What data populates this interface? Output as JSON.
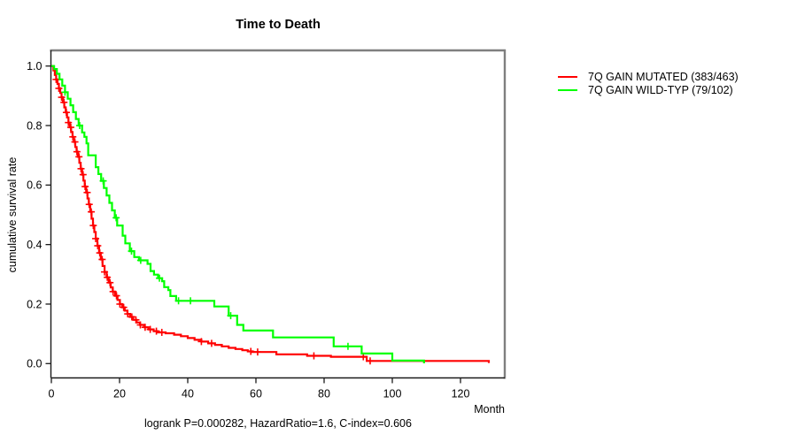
{
  "title": "Time to Death",
  "footer_stats": "logrank P=0.000282, HazardRatio=1.6, C-index=0.606",
  "chart_data": {
    "type": "line",
    "subtype": "kaplan-meier-step",
    "title": "Time to Death",
    "xlabel": "Month",
    "ylabel": "cumulative survival rate",
    "xlim": [
      0,
      133
    ],
    "ylim": [
      0,
      1
    ],
    "xticks": [
      0,
      20,
      40,
      60,
      80,
      100,
      120
    ],
    "yticks": [
      0.0,
      0.2,
      0.4,
      0.6,
      0.8,
      1.0
    ],
    "grid": false,
    "legend_position": "right-outside",
    "annotation": "logrank P=0.000282, HazardRatio=1.6, C-index=0.606",
    "series": [
      {
        "name": "7Q GAIN MUTATED (383/463)",
        "color": "#ff0000",
        "points": [
          [
            0,
            1.0
          ],
          [
            0.6,
            0.985
          ],
          [
            1.0,
            0.97
          ],
          [
            1.4,
            0.955
          ],
          [
            1.8,
            0.94
          ],
          [
            2.2,
            0.925
          ],
          [
            2.6,
            0.91
          ],
          [
            3.0,
            0.895
          ],
          [
            3.4,
            0.878
          ],
          [
            3.8,
            0.861
          ],
          [
            4.2,
            0.844
          ],
          [
            4.6,
            0.827
          ],
          [
            5.0,
            0.81
          ],
          [
            5.4,
            0.794
          ],
          [
            5.8,
            0.778
          ],
          [
            6.2,
            0.762
          ],
          [
            6.6,
            0.745
          ],
          [
            7.0,
            0.728
          ],
          [
            7.4,
            0.712
          ],
          [
            7.8,
            0.695
          ],
          [
            8.2,
            0.675
          ],
          [
            8.6,
            0.655
          ],
          [
            9.0,
            0.635
          ],
          [
            9.4,
            0.615
          ],
          [
            9.8,
            0.595
          ],
          [
            10.2,
            0.575
          ],
          [
            10.6,
            0.555
          ],
          [
            11.0,
            0.535
          ],
          [
            11.4,
            0.51
          ],
          [
            11.8,
            0.487
          ],
          [
            12.2,
            0.464
          ],
          [
            12.6,
            0.442
          ],
          [
            13.0,
            0.42
          ],
          [
            13.5,
            0.396
          ],
          [
            14.0,
            0.372
          ],
          [
            14.5,
            0.35
          ],
          [
            15.0,
            0.328
          ],
          [
            15.6,
            0.308
          ],
          [
            16.2,
            0.29
          ],
          [
            16.8,
            0.272
          ],
          [
            17.4,
            0.256
          ],
          [
            18.0,
            0.242
          ],
          [
            18.7,
            0.228
          ],
          [
            19.4,
            0.214
          ],
          [
            20.1,
            0.2
          ],
          [
            20.8,
            0.189
          ],
          [
            21.5,
            0.178
          ],
          [
            22.3,
            0.167
          ],
          [
            23.1,
            0.157
          ],
          [
            24.0,
            0.147
          ],
          [
            25.0,
            0.138
          ],
          [
            26.0,
            0.13
          ],
          [
            27.2,
            0.122
          ],
          [
            28.5,
            0.115
          ],
          [
            30.0,
            0.109
          ],
          [
            31.2,
            0.105
          ],
          [
            33.5,
            0.102
          ],
          [
            36.0,
            0.097
          ],
          [
            38.0,
            0.092
          ],
          [
            40.0,
            0.086
          ],
          [
            42.0,
            0.08
          ],
          [
            44.0,
            0.074
          ],
          [
            46.0,
            0.068
          ],
          [
            48.0,
            0.063
          ],
          [
            50.0,
            0.058
          ],
          [
            52.0,
            0.053
          ],
          [
            54.0,
            0.049
          ],
          [
            56.0,
            0.045
          ],
          [
            57.6,
            0.041
          ],
          [
            59.0,
            0.039
          ],
          [
            66.0,
            0.031
          ],
          [
            75.0,
            0.026
          ],
          [
            82.0,
            0.023
          ],
          [
            92.5,
            0.009
          ],
          [
            128.0,
            0.009
          ],
          [
            128.3,
            0.002
          ]
        ],
        "censor_months": [
          1.4,
          2.2,
          3.0,
          3.7,
          4.4,
          5.0,
          5.7,
          6.3,
          6.9,
          7.5,
          8.1,
          8.7,
          9.3,
          9.9,
          10.5,
          11.1,
          11.7,
          12.3,
          13.0,
          13.6,
          14.2,
          14.9,
          15.6,
          16.4,
          17.2,
          18.1,
          19.1,
          20.1,
          21.2,
          22.4,
          23.6,
          24.8,
          26.1,
          27.5,
          29.0,
          30.8,
          32.4,
          44.0,
          47.0,
          58.5,
          60.5,
          77.0,
          91.5,
          93.5
        ]
      },
      {
        "name": "7Q GAIN WILD-TYP (79/102)",
        "color": "#00ff00",
        "points": [
          [
            0,
            1.0
          ],
          [
            0.8,
            0.99
          ],
          [
            1.6,
            0.974
          ],
          [
            2.4,
            0.955
          ],
          [
            3.2,
            0.934
          ],
          [
            4.0,
            0.912
          ],
          [
            4.8,
            0.89
          ],
          [
            5.6,
            0.868
          ],
          [
            6.4,
            0.845
          ],
          [
            7.2,
            0.822
          ],
          [
            8.0,
            0.8
          ],
          [
            9.0,
            0.777
          ],
          [
            9.7,
            0.762
          ],
          [
            10.3,
            0.74
          ],
          [
            10.8,
            0.7
          ],
          [
            13.0,
            0.66
          ],
          [
            13.8,
            0.637
          ],
          [
            14.6,
            0.614
          ],
          [
            15.4,
            0.59
          ],
          [
            16.2,
            0.565
          ],
          [
            17.0,
            0.54
          ],
          [
            17.8,
            0.515
          ],
          [
            18.6,
            0.49
          ],
          [
            19.3,
            0.464
          ],
          [
            20.9,
            0.43
          ],
          [
            21.7,
            0.404
          ],
          [
            23.0,
            0.378
          ],
          [
            24.3,
            0.358
          ],
          [
            25.7,
            0.347
          ],
          [
            28.2,
            0.335
          ],
          [
            29.1,
            0.311
          ],
          [
            30.1,
            0.299
          ],
          [
            31.3,
            0.287
          ],
          [
            32.5,
            0.277
          ],
          [
            33.1,
            0.257
          ],
          [
            34.3,
            0.247
          ],
          [
            34.9,
            0.227
          ],
          [
            36.6,
            0.211
          ],
          [
            47.8,
            0.192
          ],
          [
            52.0,
            0.161
          ],
          [
            54.5,
            0.13
          ],
          [
            56.3,
            0.111
          ],
          [
            65.0,
            0.088
          ],
          [
            82.8,
            0.058
          ],
          [
            91.0,
            0.034
          ],
          [
            100.0,
            0.01
          ],
          [
            109.0,
            0.01
          ],
          [
            109.3,
            0.001
          ]
        ],
        "censor_months": [
          4.0,
          8.3,
          15.2,
          19.0,
          23.5,
          26.2,
          31.7,
          37.3,
          40.8,
          52.6,
          87.0
        ]
      }
    ]
  },
  "legend": {
    "items": [
      {
        "label": "7Q GAIN MUTATED (383/463)",
        "color": "#ff0000"
      },
      {
        "label": "7Q GAIN WILD-TYP (79/102)",
        "color": "#00ff00"
      }
    ]
  },
  "colors": {
    "box_gray": "#7f7f7f",
    "axis_black": "#1a1a1a",
    "text": "#000000"
  }
}
